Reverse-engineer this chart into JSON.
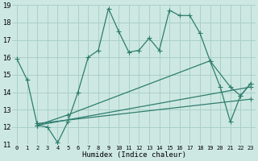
{
  "xlabel": "Humidex (Indice chaleur)",
  "bg_color": "#cde8e2",
  "grid_color": "#aacfca",
  "line_color": "#2e7d6e",
  "xlim": [
    -0.5,
    23.5
  ],
  "ylim": [
    11,
    19
  ],
  "xticks": [
    0,
    1,
    2,
    3,
    4,
    5,
    6,
    7,
    8,
    9,
    10,
    11,
    12,
    13,
    14,
    15,
    16,
    17,
    18,
    19,
    20,
    21,
    22,
    23
  ],
  "yticks": [
    11,
    12,
    13,
    14,
    15,
    16,
    17,
    18,
    19
  ],
  "main_x": [
    0,
    1,
    2,
    3,
    4,
    5,
    6,
    7,
    8,
    9,
    10,
    11,
    12,
    13,
    14,
    15,
    16,
    17,
    18,
    19,
    20,
    21,
    22,
    23
  ],
  "main_y": [
    15.9,
    14.7,
    12.1,
    12.0,
    11.1,
    12.3,
    14.0,
    16.0,
    16.4,
    18.8,
    17.5,
    16.3,
    16.4,
    17.1,
    16.4,
    18.7,
    18.4,
    18.4,
    17.4,
    15.8,
    14.3,
    12.3,
    13.8,
    14.5
  ],
  "line2_x": [
    2,
    5,
    19,
    21,
    22,
    23
  ],
  "line2_y": [
    12.1,
    12.7,
    15.8,
    14.3,
    13.8,
    14.5
  ],
  "line3_x": [
    2,
    23
  ],
  "line3_y": [
    12.1,
    14.3
  ],
  "line4_x": [
    2,
    23
  ],
  "line4_y": [
    12.2,
    13.6
  ]
}
